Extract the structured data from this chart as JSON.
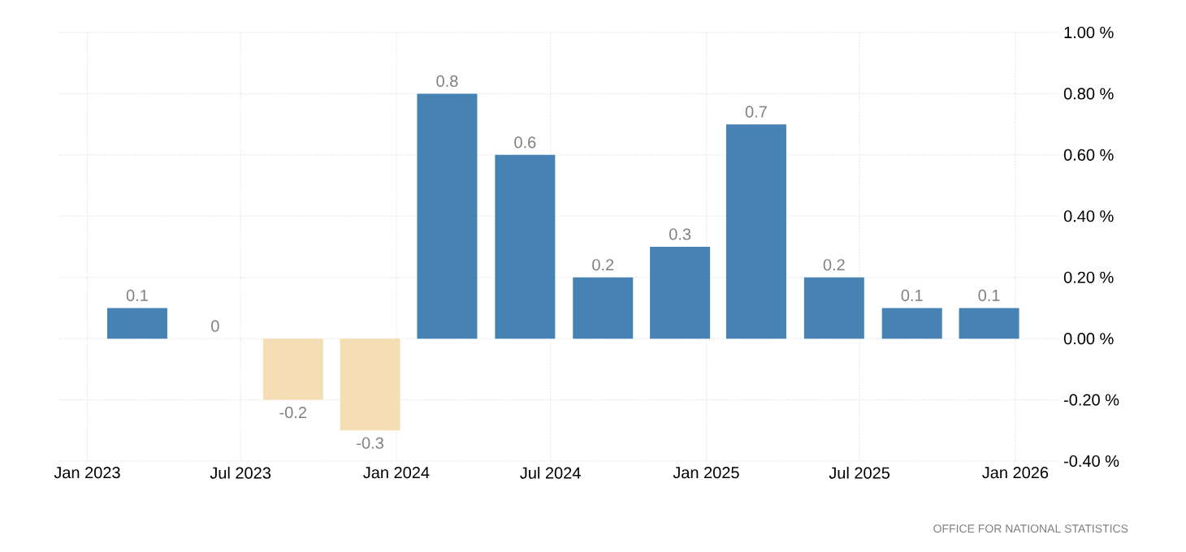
{
  "chart_data": {
    "type": "bar",
    "x": [
      "2023-03",
      "2023-06",
      "2023-09",
      "2023-12",
      "2024-03",
      "2024-06",
      "2024-09",
      "2024-12",
      "2025-03",
      "2025-06",
      "2025-09",
      "2025-12"
    ],
    "values": [
      0.1,
      0,
      -0.2,
      -0.3,
      0.8,
      0.6,
      0.2,
      0.3,
      0.7,
      0.2,
      0.1,
      0.1
    ],
    "colors": [
      "#4682b4",
      "#4682b4",
      "#f5deb3",
      "#f5deb3",
      "#4682b4",
      "#4682b4",
      "#4682b4",
      "#4682b4",
      "#4682b4",
      "#4682b4",
      "#4682b4",
      "#4682b4"
    ],
    "data_labels": true,
    "xlim": [
      "2022-11-28",
      "2026-02-20"
    ],
    "xticks": [
      {
        "value": "2023-01",
        "label": "Jan 2023"
      },
      {
        "value": "2023-07",
        "label": "Jul 2023"
      },
      {
        "value": "2024-01",
        "label": "Jan 2024"
      },
      {
        "value": "2024-07",
        "label": "Jul 2024"
      },
      {
        "value": "2025-01",
        "label": "Jan 2025"
      },
      {
        "value": "2025-07",
        "label": "Jul 2025"
      },
      {
        "value": "2026-01",
        "label": "Jan 2026"
      }
    ],
    "ylim": [
      -0.4,
      1.0
    ],
    "yticks": [
      {
        "value": -0.4,
        "label": "-0.40 %"
      },
      {
        "value": -0.2,
        "label": "-0.20 %"
      },
      {
        "value": 0,
        "label": "0.00 %"
      },
      {
        "value": 0.2,
        "label": "0.20 %"
      },
      {
        "value": 0.4,
        "label": "0.40 %"
      },
      {
        "value": 0.6,
        "label": "0.60 %"
      },
      {
        "value": 0.8,
        "label": "0.80 %"
      },
      {
        "value": 1.0,
        "label": "1.00 %"
      }
    ],
    "grid": true,
    "annotations": [
      "OFFICE FOR NATIONAL STATISTICS"
    ]
  }
}
